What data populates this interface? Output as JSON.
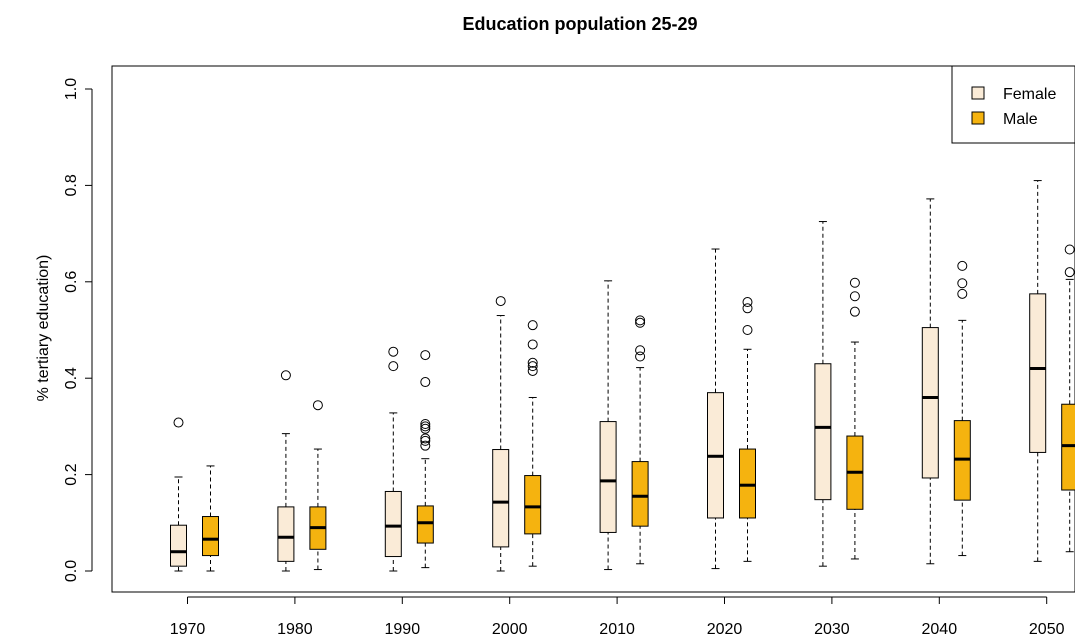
{
  "chart_data": {
    "type": "boxplot",
    "title": "Education population 25-29",
    "xlabel": "",
    "ylabel": "% tertiary education)",
    "ylim": [
      0,
      1.0
    ],
    "yticks": [
      "0.0",
      "0.2",
      "0.4",
      "0.6",
      "0.8",
      "1.0"
    ],
    "categories": [
      "1970",
      "1980",
      "1990",
      "2000",
      "2010",
      "2020",
      "2030",
      "2040",
      "2050"
    ],
    "legend": {
      "position": "top-right"
    },
    "series": [
      {
        "name": "Female",
        "color": "#FAEBD7",
        "boxes": [
          {
            "whisker_low": 0.0,
            "q1": 0.01,
            "median": 0.04,
            "q3": 0.095,
            "whisker_high": 0.195,
            "outliers": [
              0.308
            ]
          },
          {
            "whisker_low": 0.0,
            "q1": 0.02,
            "median": 0.07,
            "q3": 0.133,
            "whisker_high": 0.285,
            "outliers": [
              0.406
            ]
          },
          {
            "whisker_low": 0.0,
            "q1": 0.03,
            "median": 0.093,
            "q3": 0.165,
            "whisker_high": 0.328,
            "outliers": [
              0.425,
              0.455
            ]
          },
          {
            "whisker_low": 0.0,
            "q1": 0.05,
            "median": 0.143,
            "q3": 0.252,
            "whisker_high": 0.53,
            "outliers": [
              0.56
            ]
          },
          {
            "whisker_low": 0.003,
            "q1": 0.08,
            "median": 0.187,
            "q3": 0.31,
            "whisker_high": 0.602,
            "outliers": []
          },
          {
            "whisker_low": 0.005,
            "q1": 0.11,
            "median": 0.238,
            "q3": 0.37,
            "whisker_high": 0.668,
            "outliers": []
          },
          {
            "whisker_low": 0.01,
            "q1": 0.148,
            "median": 0.298,
            "q3": 0.43,
            "whisker_high": 0.725,
            "outliers": []
          },
          {
            "whisker_low": 0.015,
            "q1": 0.193,
            "median": 0.36,
            "q3": 0.505,
            "whisker_high": 0.772,
            "outliers": []
          },
          {
            "whisker_low": 0.02,
            "q1": 0.246,
            "median": 0.42,
            "q3": 0.575,
            "whisker_high": 0.81,
            "outliers": []
          }
        ]
      },
      {
        "name": "Male",
        "color": "#F5B30F",
        "boxes": [
          {
            "whisker_low": 0.0,
            "q1": 0.032,
            "median": 0.066,
            "q3": 0.113,
            "whisker_high": 0.218,
            "outliers": []
          },
          {
            "whisker_low": 0.003,
            "q1": 0.045,
            "median": 0.09,
            "q3": 0.133,
            "whisker_high": 0.253,
            "outliers": [
              0.344
            ]
          },
          {
            "whisker_low": 0.007,
            "q1": 0.058,
            "median": 0.1,
            "q3": 0.135,
            "whisker_high": 0.233,
            "outliers": [
              0.26,
              0.27,
              0.275,
              0.295,
              0.3,
              0.305,
              0.392,
              0.448
            ]
          },
          {
            "whisker_low": 0.01,
            "q1": 0.077,
            "median": 0.133,
            "q3": 0.198,
            "whisker_high": 0.36,
            "outliers": [
              0.415,
              0.425,
              0.432,
              0.47,
              0.51
            ]
          },
          {
            "whisker_low": 0.015,
            "q1": 0.093,
            "median": 0.155,
            "q3": 0.227,
            "whisker_high": 0.422,
            "outliers": [
              0.445,
              0.458,
              0.515,
              0.52
            ]
          },
          {
            "whisker_low": 0.02,
            "q1": 0.11,
            "median": 0.178,
            "q3": 0.253,
            "whisker_high": 0.46,
            "outliers": [
              0.5,
              0.545,
              0.558
            ]
          },
          {
            "whisker_low": 0.025,
            "q1": 0.128,
            "median": 0.205,
            "q3": 0.28,
            "whisker_high": 0.475,
            "outliers": [
              0.538,
              0.57,
              0.598
            ]
          },
          {
            "whisker_low": 0.032,
            "q1": 0.147,
            "median": 0.232,
            "q3": 0.312,
            "whisker_high": 0.52,
            "outliers": [
              0.575,
              0.597,
              0.633
            ]
          },
          {
            "whisker_low": 0.04,
            "q1": 0.168,
            "median": 0.26,
            "q3": 0.346,
            "whisker_high": 0.605,
            "outliers": [
              0.62,
              0.667
            ]
          }
        ]
      }
    ]
  }
}
